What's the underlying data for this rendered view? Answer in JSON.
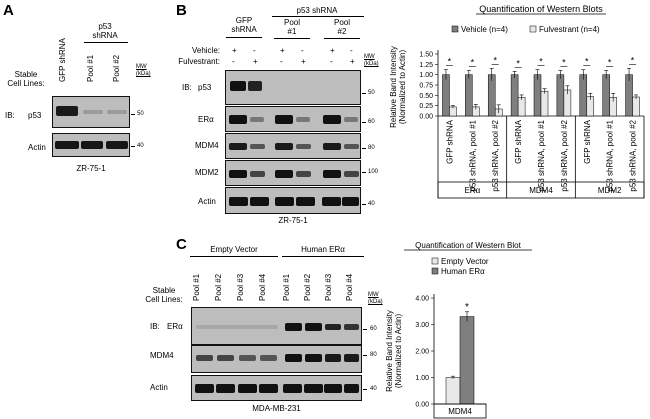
{
  "panel_a": {
    "letter": "A",
    "lanes": [
      "GFP shRNA",
      "Pool #1",
      "Pool #2"
    ],
    "group_header": "p53\nshRNA",
    "stable_label": "Stable\nCell Lines:",
    "ib_label": "IB:",
    "mw_label": "MW\n(kDa)",
    "rows": [
      {
        "name": "p53",
        "mw": "50"
      },
      {
        "name": "Actin",
        "mw": "40"
      }
    ],
    "cell_line": "ZR-75-1"
  },
  "panel_b": {
    "letter": "B",
    "group_gfp": "GFP\nshRNA",
    "group_p53": "p53 shRNA",
    "pool1": "Pool\n#1",
    "pool2": "Pool\n#2",
    "vehicle_label": "Vehicle:",
    "fulv_label": "Fulvestrant:",
    "vehicle_signs": [
      "+",
      "-",
      "+",
      "-",
      "+",
      "-"
    ],
    "fulv_signs": [
      "-",
      "+",
      "-",
      "+",
      "-",
      "+"
    ],
    "ib_label": "IB:",
    "mw_label": "MW\n(kDa)",
    "rows": [
      {
        "name": "p53",
        "mw": "50"
      },
      {
        "name": "ERα",
        "mw": "60"
      },
      {
        "name": "MDM4",
        "mw": "80"
      },
      {
        "name": "MDM2",
        "mw": "100"
      },
      {
        "name": "Actin",
        "mw": "40"
      }
    ],
    "cell_line": "ZR-75-1"
  },
  "panel_c": {
    "letter": "C",
    "group_empty": "Empty Vector",
    "group_human": "Human ERα",
    "lanes": [
      "Pool #1",
      "Pool #2",
      "Pool #3",
      "Pool #4",
      "Pool #1",
      "Pool #2",
      "Pool #3",
      "Pool #4"
    ],
    "stable_label": "Stable\nCell Lines:",
    "ib_label": "IB:",
    "mw_label": "MW\n(kDa)",
    "rows": [
      {
        "name": "ERα",
        "mw": "60"
      },
      {
        "name": "MDM4",
        "mw": "80"
      },
      {
        "name": "Actin",
        "mw": "40"
      }
    ],
    "cell_line": "MDA-MB-231"
  },
  "chart_data": [
    {
      "type": "bar",
      "title": "Quantification of Western Blots",
      "ylabel": "Relative Band Intensity\n(Normalized to Actin)",
      "ylim": [
        0,
        1.5
      ],
      "yticks": [
        "0.00",
        "0.25",
        "0.50",
        "0.75",
        "1.00",
        "1.25",
        "1.50"
      ],
      "categories": [
        "GFP shRNA",
        "p53 shRNA, pool #1",
        "p53 shRNA, pool #2",
        "GFP shRNA",
        "p53 shRNA, pool #1",
        "p53 shRNA, pool #2",
        "GFP shRNA",
        "p53 shRNA, pool #1",
        "p53 shRNA, pool #2"
      ],
      "groups": [
        "ERα",
        "MDM4",
        "MDM2"
      ],
      "series": [
        {
          "name": "Vehicle (n=4)",
          "color": "#7f7f7f",
          "values": [
            1.0,
            1.0,
            1.0,
            1.0,
            1.0,
            1.0,
            1.0,
            1.0,
            1.0
          ],
          "errors": [
            0.12,
            0.1,
            0.15,
            0.08,
            0.12,
            0.1,
            0.12,
            0.1,
            0.15
          ]
        },
        {
          "name": "Fulvestrant (n=4)",
          "color": "#e8e8e8",
          "values": [
            0.22,
            0.22,
            0.17,
            0.45,
            0.6,
            0.63,
            0.47,
            0.45,
            0.46
          ],
          "errors": [
            0.03,
            0.06,
            0.1,
            0.06,
            0.06,
            0.1,
            0.08,
            0.1,
            0.05
          ]
        }
      ],
      "significance": [
        "*",
        "*",
        "*",
        "*",
        "*",
        "*",
        "*",
        "*",
        "*"
      ],
      "legend": "top"
    },
    {
      "type": "bar",
      "title": "Quantification of Western Blot",
      "ylabel": "Relative Band Intensity\n(Normalized to Actin)",
      "ylim": [
        0,
        4.0
      ],
      "yticks": [
        "0.00",
        "1.00",
        "2.00",
        "3.00",
        "4.00"
      ],
      "categories": [
        "MDM4"
      ],
      "series": [
        {
          "name": "Empty Vector",
          "color": "#e8e8e8",
          "values": [
            1.0
          ],
          "errors": [
            0.05
          ]
        },
        {
          "name": "Human ERα",
          "color": "#7f7f7f",
          "values": [
            3.3
          ],
          "errors": [
            0.18
          ]
        }
      ],
      "significance": [
        "*"
      ],
      "legend": "top-left"
    }
  ]
}
